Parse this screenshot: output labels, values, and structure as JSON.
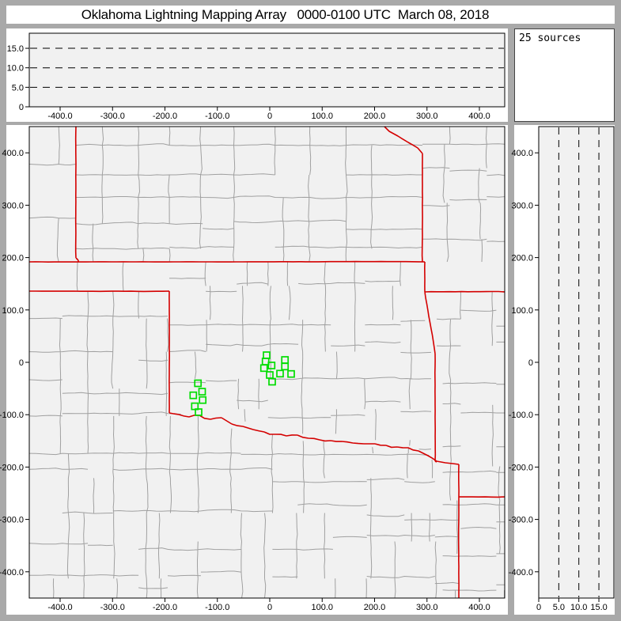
{
  "title": "Oklahoma Lightning Mapping Array   0000-0100 UTC  March 08, 2018",
  "sources_label": "25 sources",
  "colors": {
    "marker_green": "#00dd00",
    "state_border_red": "#d40000",
    "county_gray": "#a0a0a0",
    "plot_bg": "#f1f1f1",
    "window_gray": "#a9a9a9"
  },
  "axes": {
    "ew_km": {
      "values": [
        -400,
        -300,
        -200,
        -100,
        0,
        100,
        200,
        300,
        400
      ],
      "labels": [
        "-400.0",
        "-300.0",
        "-200.0",
        "-100.0",
        "0",
        "100.0",
        "200.0",
        "300.0",
        "400.0"
      ]
    },
    "ns_km": {
      "values": [
        400,
        300,
        200,
        100,
        0,
        -100,
        -200,
        -300,
        -400
      ],
      "labels": [
        "400.0",
        "300.0",
        "200.0",
        "100.0",
        "0",
        "-100.0",
        "-200.0",
        "-300.0",
        "-400.0"
      ]
    },
    "alt_km": {
      "values": [
        0,
        5,
        10,
        15
      ],
      "labels": [
        "0",
        "5.0",
        "10.0",
        "15.0"
      ]
    }
  },
  "chart_data": {
    "type": "scatter",
    "title": "Oklahoma Lightning Mapping Array   0000-0100 UTC  March 08, 2018",
    "source_count_label": "25 sources",
    "marker_style": "open-square",
    "marker_color": "#00dd00",
    "panels": [
      {
        "id": "altitude-vs-eastwest",
        "position": "top",
        "xlim_km": [
          -459,
          450
        ],
        "ylim_alt_km": [
          0,
          19
        ],
        "grid_dashed_alt_km": [
          5,
          10,
          15
        ],
        "visible_points": []
      },
      {
        "id": "plan-view",
        "position": "main",
        "xlim_km": [
          -459,
          450
        ],
        "ylim_km": [
          -450,
          450
        ],
        "map_layers": [
          "county-boundaries-gray",
          "state-boundaries-red"
        ],
        "visible_points_km": [
          [
            -6.0,
            13.6
          ],
          [
            -8.0,
            1.5
          ],
          [
            -11.0,
            -11.0
          ],
          [
            3.5,
            -6.0
          ],
          [
            29.0,
            4.5
          ],
          [
            29.0,
            -8.0
          ],
          [
            0.0,
            -24.2
          ],
          [
            19.6,
            -21.6
          ],
          [
            40.8,
            -22.2
          ],
          [
            4.5,
            -37.0
          ],
          [
            -137.1,
            -40.0
          ],
          [
            -129.1,
            -56.0
          ],
          [
            -146.0,
            -63.0
          ],
          [
            -128.0,
            -72.1
          ],
          [
            -142.9,
            -84.0
          ],
          [
            -135.8,
            -95.2
          ]
        ]
      },
      {
        "id": "altitude-vs-northsouth",
        "position": "right",
        "xlim_alt_km": [
          0,
          19
        ],
        "ylim_km": [
          -450,
          450
        ],
        "grid_dashed_alt_km": [
          5,
          10,
          15
        ],
        "visible_points": []
      }
    ]
  }
}
